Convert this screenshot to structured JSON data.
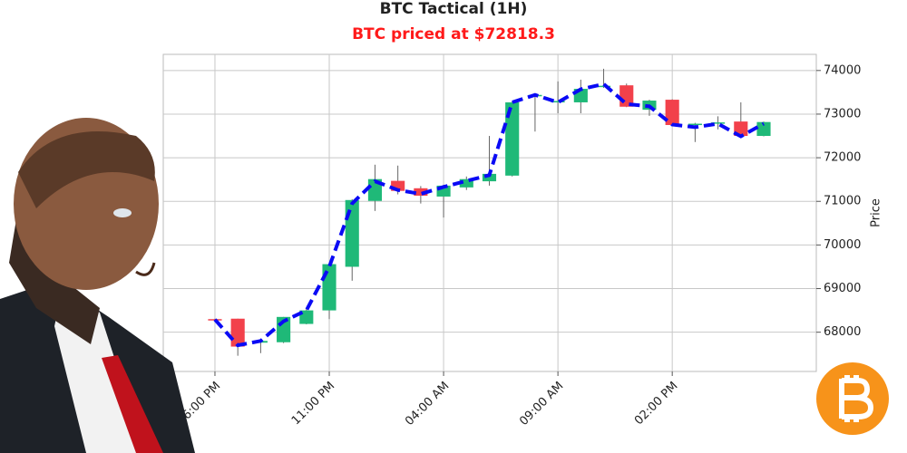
{
  "chart_data": {
    "type": "candlestick",
    "title": "BTC Tactical (1H)",
    "subtitle": "BTC priced at $72818.3",
    "y_label": "Price",
    "x": [
      0,
      1,
      2,
      3,
      4,
      5,
      6,
      7,
      8,
      9,
      10,
      11,
      12,
      13,
      14,
      15,
      16,
      17,
      18,
      19,
      20,
      21,
      22,
      23,
      24
    ],
    "open": [
      68300,
      68310,
      67760,
      67770,
      68190,
      68500,
      69500,
      71010,
      71470,
      71300,
      71110,
      71320,
      71460,
      71590,
      73420,
      73280,
      73270,
      73620,
      73660,
      73100,
      73330,
      72750,
      72790,
      72830,
      72500
    ],
    "high": [
      68310,
      68310,
      67810,
      68350,
      68560,
      69580,
      71050,
      71840,
      71820,
      71350,
      71380,
      71570,
      72500,
      73290,
      73450,
      73750,
      73790,
      74040,
      73700,
      73330,
      73340,
      72800,
      72950,
      73270,
      72830
    ],
    "low": [
      68280,
      67460,
      67520,
      67750,
      68180,
      68300,
      69180,
      70780,
      71160,
      70950,
      70630,
      71260,
      71360,
      71570,
      72600,
      73020,
      73020,
      73600,
      73160,
      72960,
      72720,
      72360,
      72650,
      72480,
      72490
    ],
    "close": [
      68290,
      67670,
      67800,
      68350,
      68500,
      69560,
      71030,
      71510,
      71240,
      71130,
      71360,
      71510,
      71630,
      73270,
      73440,
      73300,
      73580,
      73650,
      73170,
      73310,
      72750,
      72780,
      72810,
      72500,
      72818.3
    ],
    "up_color": "#1fb978",
    "down_color": "#f2414b",
    "ma": {
      "values": [
        68290,
        67700,
        67800,
        68250,
        68500,
        69500,
        70950,
        71460,
        71260,
        71170,
        71330,
        71470,
        71600,
        73270,
        73440,
        73270,
        73570,
        73690,
        73230,
        73180,
        72760,
        72700,
        72780,
        72490,
        72780
      ],
      "color": "#0a0af5"
    },
    "xlim": [
      -2.26,
      26.3
    ],
    "ylim": [
      67100,
      74370
    ],
    "xticks": [
      {
        "value": 0,
        "label": "06:00 PM"
      },
      {
        "value": 5,
        "label": "11:00 PM"
      },
      {
        "value": 10,
        "label": "04:00 AM"
      },
      {
        "value": 15,
        "label": "09:00 AM"
      },
      {
        "value": 20,
        "label": "02:00 PM"
      }
    ],
    "yticks": [
      68000,
      69000,
      70000,
      71000,
      72000,
      73000,
      74000
    ],
    "grid": true
  }
}
